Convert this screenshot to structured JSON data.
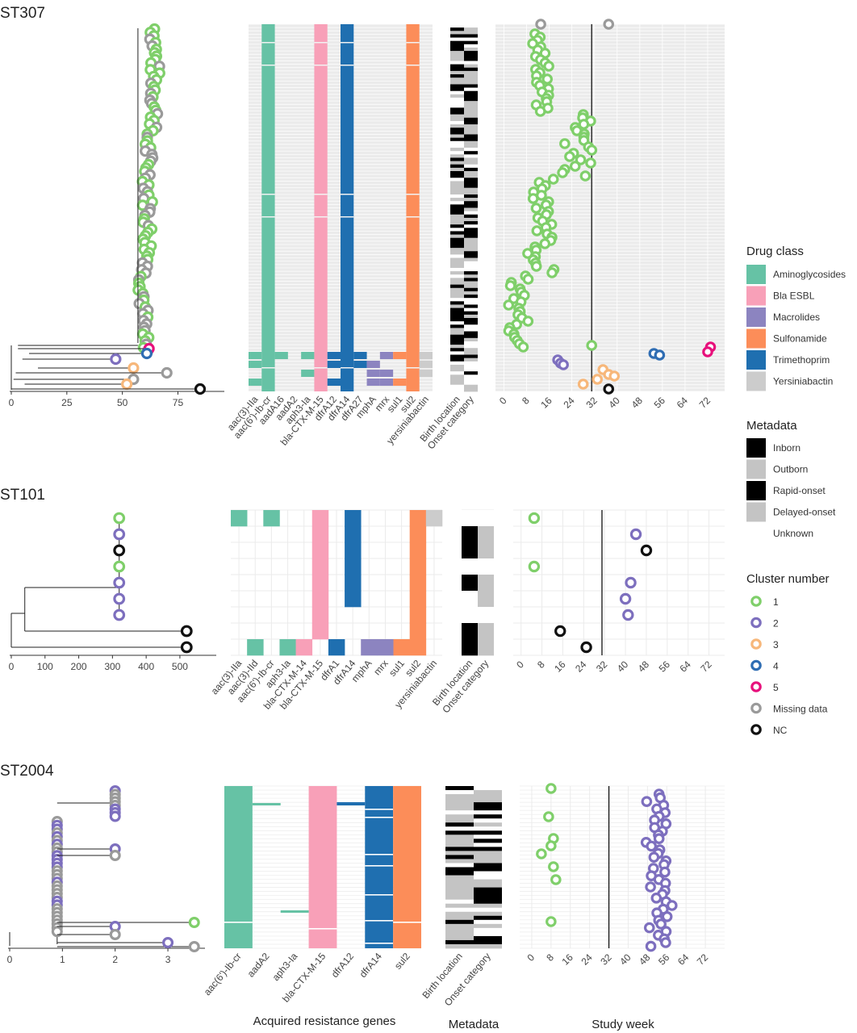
{
  "colors": {
    "Aminoglycosides": "#66c2a5",
    "Bla ESBL": "#f8a0b8",
    "Macrolides": "#8c84c0",
    "Sulfonamide": "#fc8d59",
    "Trimethoprim": "#1f6fb0",
    "Yersiniabactin": "#cccccc",
    "panel_bg": "#ebebeb",
    "grid": "#ffffff",
    "cluster": {
      "1": "#7fcf6a",
      "2": "#7d6fbe",
      "3": "#f7b77a",
      "4": "#2f6db3",
      "5": "#e7107b",
      "Missing data": "#9a9a9a",
      "NC": "#111111"
    }
  },
  "axis_titles": {
    "genes": "Acquired resistance genes",
    "metadata": "Metadata",
    "week": "Study week"
  },
  "legend": {
    "drug_class": {
      "title": "Drug class",
      "items": [
        "Aminoglycosides",
        "Bla ESBL",
        "Macrolides",
        "Sulfonamide",
        "Trimethoprim",
        "Yersiniabactin"
      ]
    },
    "metadata": {
      "title": "Metadata",
      "items": [
        {
          "label": "Inborn",
          "color": "#000000"
        },
        {
          "label": "Outborn",
          "color": "#c4c4c4"
        },
        {
          "label": "Rapid-onset",
          "color": "#000000"
        },
        {
          "label": "Delayed-onset",
          "color": "#c4c4c4"
        },
        {
          "label": "Unknown",
          "color": "#ffffff"
        }
      ]
    },
    "cluster": {
      "title": "Cluster number",
      "items": [
        "1",
        "2",
        "3",
        "4",
        "5",
        "Missing data",
        "NC"
      ]
    }
  },
  "chart_data": [
    {
      "name": "ST307",
      "type": "composite",
      "title": "ST307",
      "n_isolates": 110,
      "tree": {
        "x_ticks": [
          0,
          25,
          50,
          75
        ],
        "xlim": [
          -2,
          88
        ],
        "main_clade_depth": 62,
        "outliers": [
          {
            "x": 62,
            "cluster": "5"
          },
          {
            "x": 61,
            "cluster": "4"
          },
          {
            "x": 47,
            "cluster": "2"
          },
          {
            "x": 55,
            "cluster": "3"
          },
          {
            "x": 70,
            "cluster": "Missing data"
          },
          {
            "x": 55,
            "cluster": "Missing data"
          },
          {
            "x": 52,
            "cluster": "3"
          },
          {
            "x": 85,
            "cluster": "NC"
          }
        ]
      },
      "genes": {
        "labels": [
          "aac(3)-IIa",
          "aac(6')-Ib-cr",
          "aadA16",
          "aadA2",
          "aph3-Ia",
          "bla-CTX-M-15",
          "dfrA12",
          "dfrA14",
          "dfrA27",
          "mphA",
          "mrx",
          "sul1",
          "sul2",
          "yersiniabactin"
        ],
        "classes": [
          "Aminoglycosides",
          "Aminoglycosides",
          "Aminoglycosides",
          "Aminoglycosides",
          "Aminoglycosides",
          "Bla ESBL",
          "Trimethoprim",
          "Trimethoprim",
          "Trimethoprim",
          "Macrolides",
          "Macrolides",
          "Sulfonamide",
          "Sulfonamide",
          "Yersiniabactin"
        ],
        "full_columns": [
          "aac(6')-Ib-cr",
          "bla-CTX-M-15",
          "dfrA14",
          "sul2"
        ],
        "partial_columns": [
          "aac(3)-IIa",
          "aadA16",
          "aph3-Ia",
          "dfrA12",
          "mphA",
          "mrx",
          "sul1",
          "yersiniabactin"
        ]
      },
      "metadata_columns": [
        "Birth location",
        "Onset category"
      ],
      "week": {
        "x_ticks": [
          0,
          8,
          16,
          24,
          32,
          40,
          48,
          56,
          64,
          72
        ],
        "xlim": [
          -3,
          78
        ],
        "vline": 31,
        "points_cluster1_range": [
          2,
          35
        ],
        "outlier_points": [
          {
            "week": 13,
            "cluster": "Missing data"
          },
          {
            "week": 37,
            "cluster": "Missing data"
          },
          {
            "week": 31,
            "cluster": "1"
          },
          {
            "week": 73,
            "cluster": "5"
          },
          {
            "week": 72,
            "cluster": "5"
          },
          {
            "week": 53,
            "cluster": "4"
          },
          {
            "week": 55,
            "cluster": "4"
          },
          {
            "week": 19,
            "cluster": "2"
          },
          {
            "week": 20,
            "cluster": "2"
          },
          {
            "week": 21,
            "cluster": "2"
          },
          {
            "week": 35,
            "cluster": "3"
          },
          {
            "week": 37,
            "cluster": "3"
          },
          {
            "week": 39,
            "cluster": "3"
          },
          {
            "week": 33,
            "cluster": "3"
          },
          {
            "week": 28,
            "cluster": "3"
          },
          {
            "week": 37,
            "cluster": "NC"
          }
        ]
      }
    },
    {
      "name": "ST101",
      "type": "composite",
      "title": "ST101",
      "n_isolates": 9,
      "tree": {
        "x_ticks": [
          0,
          100,
          200,
          300,
          400,
          500
        ],
        "xlim": [
          -5,
          560
        ],
        "tips": [
          {
            "x": 320,
            "cluster": "1"
          },
          {
            "x": 320,
            "cluster": "2"
          },
          {
            "x": 320,
            "cluster": "NC"
          },
          {
            "x": 320,
            "cluster": "1"
          },
          {
            "x": 320,
            "cluster": "2"
          },
          {
            "x": 320,
            "cluster": "2"
          },
          {
            "x": 320,
            "cluster": "2"
          },
          {
            "x": 520,
            "cluster": "NC"
          },
          {
            "x": 520,
            "cluster": "NC"
          }
        ]
      },
      "genes": {
        "labels": [
          "aac(3)-IIa",
          "aac(3)-IId",
          "aac(6')-Ib-cr",
          "aph3-Ia",
          "bla-CTX-M-14",
          "bla-CTX-M-15",
          "dfrA1",
          "dfrA14",
          "mphA",
          "mrx",
          "sul1",
          "sul2",
          "yersiniabactin"
        ],
        "classes": [
          "Aminoglycosides",
          "Aminoglycosides",
          "Aminoglycosides",
          "Aminoglycosides",
          "Bla ESBL",
          "Bla ESBL",
          "Trimethoprim",
          "Trimethoprim",
          "Macrolides",
          "Macrolides",
          "Sulfonamide",
          "Sulfonamide",
          "Yersiniabactin"
        ],
        "presence": [
          [
            1,
            0,
            1,
            0,
            0,
            1,
            0,
            1,
            0,
            0,
            0,
            1,
            1
          ],
          [
            0,
            0,
            0,
            0,
            0,
            1,
            0,
            1,
            0,
            0,
            0,
            1,
            0
          ],
          [
            0,
            0,
            0,
            0,
            0,
            1,
            0,
            1,
            0,
            0,
            0,
            1,
            0
          ],
          [
            0,
            0,
            0,
            0,
            0,
            1,
            0,
            1,
            0,
            0,
            0,
            1,
            0
          ],
          [
            0,
            0,
            0,
            0,
            0,
            1,
            0,
            1,
            0,
            0,
            0,
            1,
            0
          ],
          [
            0,
            0,
            0,
            0,
            0,
            1,
            0,
            1,
            0,
            0,
            0,
            1,
            0
          ],
          [
            0,
            0,
            0,
            0,
            0,
            1,
            0,
            0,
            0,
            0,
            0,
            1,
            0
          ],
          [
            0,
            0,
            0,
            0,
            0,
            1,
            0,
            0,
            0,
            0,
            0,
            1,
            0
          ],
          [
            0,
            1,
            0,
            1,
            1,
            0,
            1,
            0,
            1,
            1,
            1,
            1,
            0
          ]
        ]
      },
      "metadata_columns": [
        "Birth location",
        "Onset category"
      ],
      "metadata_values": [
        [
          "Unknown",
          "Unknown"
        ],
        [
          "Inborn",
          "Delayed-onset"
        ],
        [
          "Inborn",
          "Delayed-onset"
        ],
        [
          "Unknown",
          "Unknown"
        ],
        [
          "Inborn",
          "Delayed-onset"
        ],
        [
          "Unknown",
          "Delayed-onset"
        ],
        [
          "Unknown",
          "Unknown"
        ],
        [
          "Inborn",
          "Delayed-onset"
        ],
        [
          "Inborn",
          "Delayed-onset"
        ]
      ],
      "week": {
        "x_ticks": [
          0,
          8,
          16,
          24,
          32,
          40,
          48,
          56,
          64,
          72
        ],
        "xlim": [
          -3,
          78
        ],
        "vline": 31,
        "points": [
          {
            "week": 5,
            "cluster": "1"
          },
          {
            "week": 44,
            "cluster": "2"
          },
          {
            "week": 48,
            "cluster": "NC"
          },
          {
            "week": 5,
            "cluster": "1"
          },
          {
            "week": 42,
            "cluster": "2"
          },
          {
            "week": 40,
            "cluster": "2"
          },
          {
            "week": 41,
            "cluster": "2"
          },
          {
            "week": 15,
            "cluster": "NC"
          },
          {
            "week": 25,
            "cluster": "NC"
          }
        ]
      }
    },
    {
      "name": "ST2004",
      "type": "composite",
      "title": "ST2004",
      "n_isolates": 40,
      "tree": {
        "x_ticks": [
          0,
          1,
          2,
          3
        ],
        "xlim": [
          -0.05,
          3.7
        ]
      },
      "genes": {
        "labels": [
          "aac(6')-Ib-cr",
          "aadA2",
          "aph3-Ia",
          "bla-CTX-M-15",
          "dfrA12",
          "dfrA14",
          "sul2"
        ],
        "classes": [
          "Aminoglycosides",
          "Aminoglycosides",
          "Aminoglycosides",
          "Bla ESBL",
          "Trimethoprim",
          "Trimethoprim",
          "Sulfonamide"
        ]
      },
      "metadata_columns": [
        "Birth location",
        "Onset category"
      ],
      "week": {
        "x_ticks": [
          0,
          8,
          16,
          24,
          32,
          40,
          48,
          56,
          64,
          72
        ],
        "xlim": [
          -5,
          80
        ],
        "vline": 32,
        "points": [
          {
            "week": 8,
            "cluster": "1"
          },
          {
            "week": 7,
            "cluster": "1"
          },
          {
            "week": 9,
            "cluster": "1"
          },
          {
            "week": 8,
            "cluster": "1"
          },
          {
            "week": 4,
            "cluster": "1"
          },
          {
            "week": 9,
            "cluster": "1"
          },
          {
            "week": 10,
            "cluster": "1"
          },
          {
            "week": 8,
            "cluster": "1"
          }
        ]
      }
    }
  ]
}
